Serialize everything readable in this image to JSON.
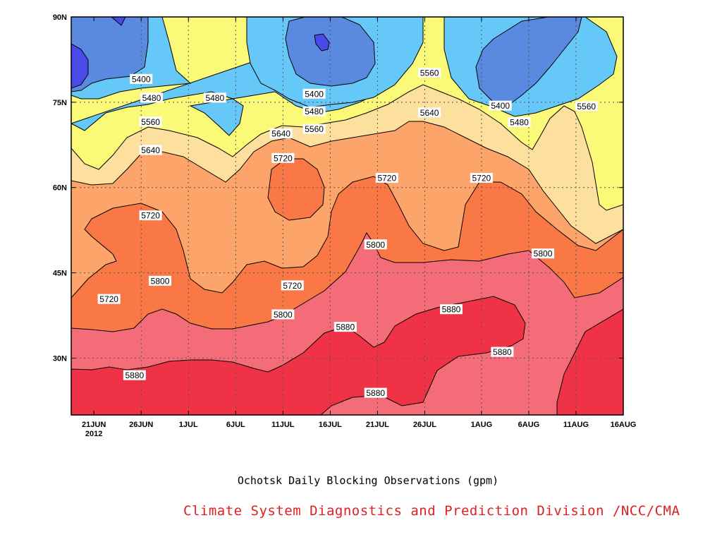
{
  "chart_data": {
    "type": "heatmap",
    "subtype": "filled-contour time-latitude",
    "title": "Ochotsk Daily Blocking Observations (gpm)",
    "credit": "Climate System Diagnostics and Prediction Division /NCC/CMA",
    "x_ticks": [
      {
        "label": "21JUN",
        "sub": "2012",
        "day": 0
      },
      {
        "label": "26JUN",
        "sub": "",
        "day": 5
      },
      {
        "label": "1JUL",
        "sub": "",
        "day": 10
      },
      {
        "label": "6JUL",
        "sub": "",
        "day": 15
      },
      {
        "label": "11JUL",
        "sub": "",
        "day": 20
      },
      {
        "label": "16JUL",
        "sub": "",
        "day": 25
      },
      {
        "label": "21JUL",
        "sub": "",
        "day": 30
      },
      {
        "label": "26JUL",
        "sub": "",
        "day": 35
      },
      {
        "label": "1AUG",
        "sub": "",
        "day": 41
      },
      {
        "label": "6AUG",
        "sub": "",
        "day": 46
      },
      {
        "label": "11AUG",
        "sub": "",
        "day": 51
      },
      {
        "label": "16AUG",
        "sub": "",
        "day": 56
      }
    ],
    "y_ticks": [
      {
        "label": "30N",
        "lat": 30
      },
      {
        "label": "45N",
        "lat": 45
      },
      {
        "label": "60N",
        "lat": 60
      },
      {
        "label": "75N",
        "lat": 75
      },
      {
        "label": "90N",
        "lat": 90
      }
    ],
    "x_range": [
      "19JUN2012",
      "16AUG2012"
    ],
    "y_range": [
      20,
      90
    ],
    "grid": true,
    "contour_levels": [
      5320,
      5400,
      5480,
      5560,
      5640,
      5720,
      5800,
      5880
    ],
    "level_colors": {
      "lt5320": "#4a4ae8",
      "5320_5400": "#5a8ae0",
      "5400_5480": "#66c8f8",
      "5480_5560": "#fafa78",
      "5560_5640": "#fee09e",
      "5640_5720": "#fca46a",
      "5720_5800": "#fa7846",
      "5800_5880": "#f46c78",
      "gt5880": "#f03246"
    },
    "contour_labels": [
      {
        "text": "5400",
        "day": 5.0,
        "lat": 79.1
      },
      {
        "text": "5480",
        "day": 6.1,
        "lat": 75.8
      },
      {
        "text": "5480",
        "day": 12.8,
        "lat": 75.8
      },
      {
        "text": "5560",
        "day": 6.0,
        "lat": 71.6
      },
      {
        "text": "5640",
        "day": 6.0,
        "lat": 66.6
      },
      {
        "text": "5720",
        "day": 6.0,
        "lat": 55.1
      },
      {
        "text": "5800",
        "day": 7.0,
        "lat": 43.6
      },
      {
        "text": "5720",
        "day": 1.6,
        "lat": 40.4
      },
      {
        "text": "5880",
        "day": 4.3,
        "lat": 27.0
      },
      {
        "text": "5640",
        "day": 19.8,
        "lat": 69.5
      },
      {
        "text": "5720",
        "day": 20.0,
        "lat": 65.2
      },
      {
        "text": "5400",
        "day": 23.3,
        "lat": 76.5
      },
      {
        "text": "5480",
        "day": 23.3,
        "lat": 73.4
      },
      {
        "text": "5560",
        "day": 23.3,
        "lat": 70.3
      },
      {
        "text": "5720",
        "day": 21.0,
        "lat": 42.8
      },
      {
        "text": "5800",
        "day": 20.0,
        "lat": 37.7
      },
      {
        "text": "5880",
        "day": 26.6,
        "lat": 35.5
      },
      {
        "text": "5720",
        "day": 31.0,
        "lat": 61.7
      },
      {
        "text": "5800",
        "day": 29.8,
        "lat": 50.0
      },
      {
        "text": "5880",
        "day": 29.8,
        "lat": 23.9
      },
      {
        "text": "5560",
        "day": 35.5,
        "lat": 80.2
      },
      {
        "text": "5640",
        "day": 35.5,
        "lat": 73.2
      },
      {
        "text": "5880",
        "day": 37.8,
        "lat": 38.6
      },
      {
        "text": "5720",
        "day": 41.0,
        "lat": 61.7
      },
      {
        "text": "5400",
        "day": 43.0,
        "lat": 74.4
      },
      {
        "text": "5480",
        "day": 45.0,
        "lat": 71.5
      },
      {
        "text": "5880",
        "day": 43.2,
        "lat": 31.1
      },
      {
        "text": "5800",
        "day": 47.5,
        "lat": 48.4
      },
      {
        "text": "5560",
        "day": 52.1,
        "lat": 74.3
      }
    ]
  }
}
